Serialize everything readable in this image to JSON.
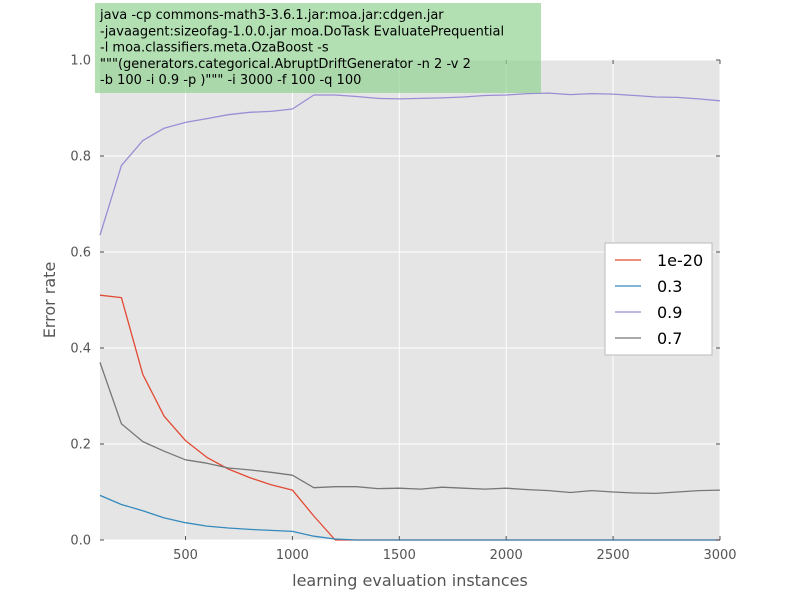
{
  "chart_data": {
    "type": "line",
    "xlabel": "learning evaluation instances",
    "ylabel": "Error rate",
    "xlim": [
      100,
      3000
    ],
    "ylim": [
      0,
      1.0
    ],
    "x_ticks": [
      500,
      1000,
      1500,
      2000,
      2500,
      3000
    ],
    "y_ticks": [
      0.0,
      0.2,
      0.4,
      0.6,
      0.8,
      1.0
    ],
    "grid": true,
    "legend_position": "right",
    "annotation": [
      "java -cp commons-math3-3.6.1.jar:moa.jar:cdgen.jar",
      "-javaagent:sizeofag-1.0.0.jar moa.DoTask EvaluatePrequential",
      "-l moa.classifiers.meta.OzaBoost  -s",
      "\"\"\"(generators.categorical.AbruptDriftGenerator  -n 2 -v 2",
      "-b 100  -i 0.9  -p  )\"\"\"   -i 3000  -f 100 -q 100"
    ],
    "x": [
      100,
      200,
      300,
      400,
      500,
      600,
      700,
      800,
      900,
      1000,
      1100,
      1200,
      1300,
      1400,
      1500,
      1600,
      1700,
      1800,
      1900,
      2000,
      2100,
      2200,
      2300,
      2400,
      2500,
      2600,
      2700,
      2800,
      2900,
      3000
    ],
    "series": [
      {
        "name": "1e-20",
        "color": "#e24a33",
        "values": [
          0.51,
          0.505,
          0.345,
          0.258,
          0.207,
          0.172,
          0.148,
          0.13,
          0.115,
          0.104,
          0.05,
          0.0,
          0.0,
          0.0,
          0.0,
          0.0,
          0.0,
          0.0,
          0.0,
          0.0,
          0.0,
          0.0,
          0.0,
          0.0,
          0.0,
          0.0,
          0.0,
          0.0,
          0.0,
          0.0
        ]
      },
      {
        "name": "0.3",
        "color": "#348abd",
        "values": [
          0.093,
          0.074,
          0.061,
          0.046,
          0.036,
          0.029,
          0.025,
          0.022,
          0.02,
          0.018,
          0.008,
          0.002,
          0.0,
          0.0,
          0.0,
          0.0,
          0.0,
          0.0,
          0.0,
          0.0,
          0.0,
          0.0,
          0.0,
          0.0,
          0.0,
          0.0,
          0.0,
          0.0,
          0.0,
          0.0
        ]
      },
      {
        "name": "0.9",
        "color": "#988ed5",
        "values": [
          0.635,
          0.78,
          0.832,
          0.858,
          0.87,
          0.878,
          0.886,
          0.891,
          0.893,
          0.898,
          0.927,
          0.927,
          0.924,
          0.92,
          0.919,
          0.92,
          0.921,
          0.923,
          0.926,
          0.927,
          0.93,
          0.931,
          0.928,
          0.93,
          0.929,
          0.926,
          0.923,
          0.922,
          0.919,
          0.915
        ]
      },
      {
        "name": "0.7",
        "color": "#777777",
        "values": [
          0.37,
          0.242,
          0.205,
          0.185,
          0.167,
          0.16,
          0.15,
          0.146,
          0.141,
          0.135,
          0.109,
          0.111,
          0.111,
          0.107,
          0.108,
          0.106,
          0.11,
          0.108,
          0.106,
          0.108,
          0.105,
          0.103,
          0.099,
          0.103,
          0.1,
          0.098,
          0.097,
          0.1,
          0.103,
          0.104
        ]
      }
    ]
  }
}
